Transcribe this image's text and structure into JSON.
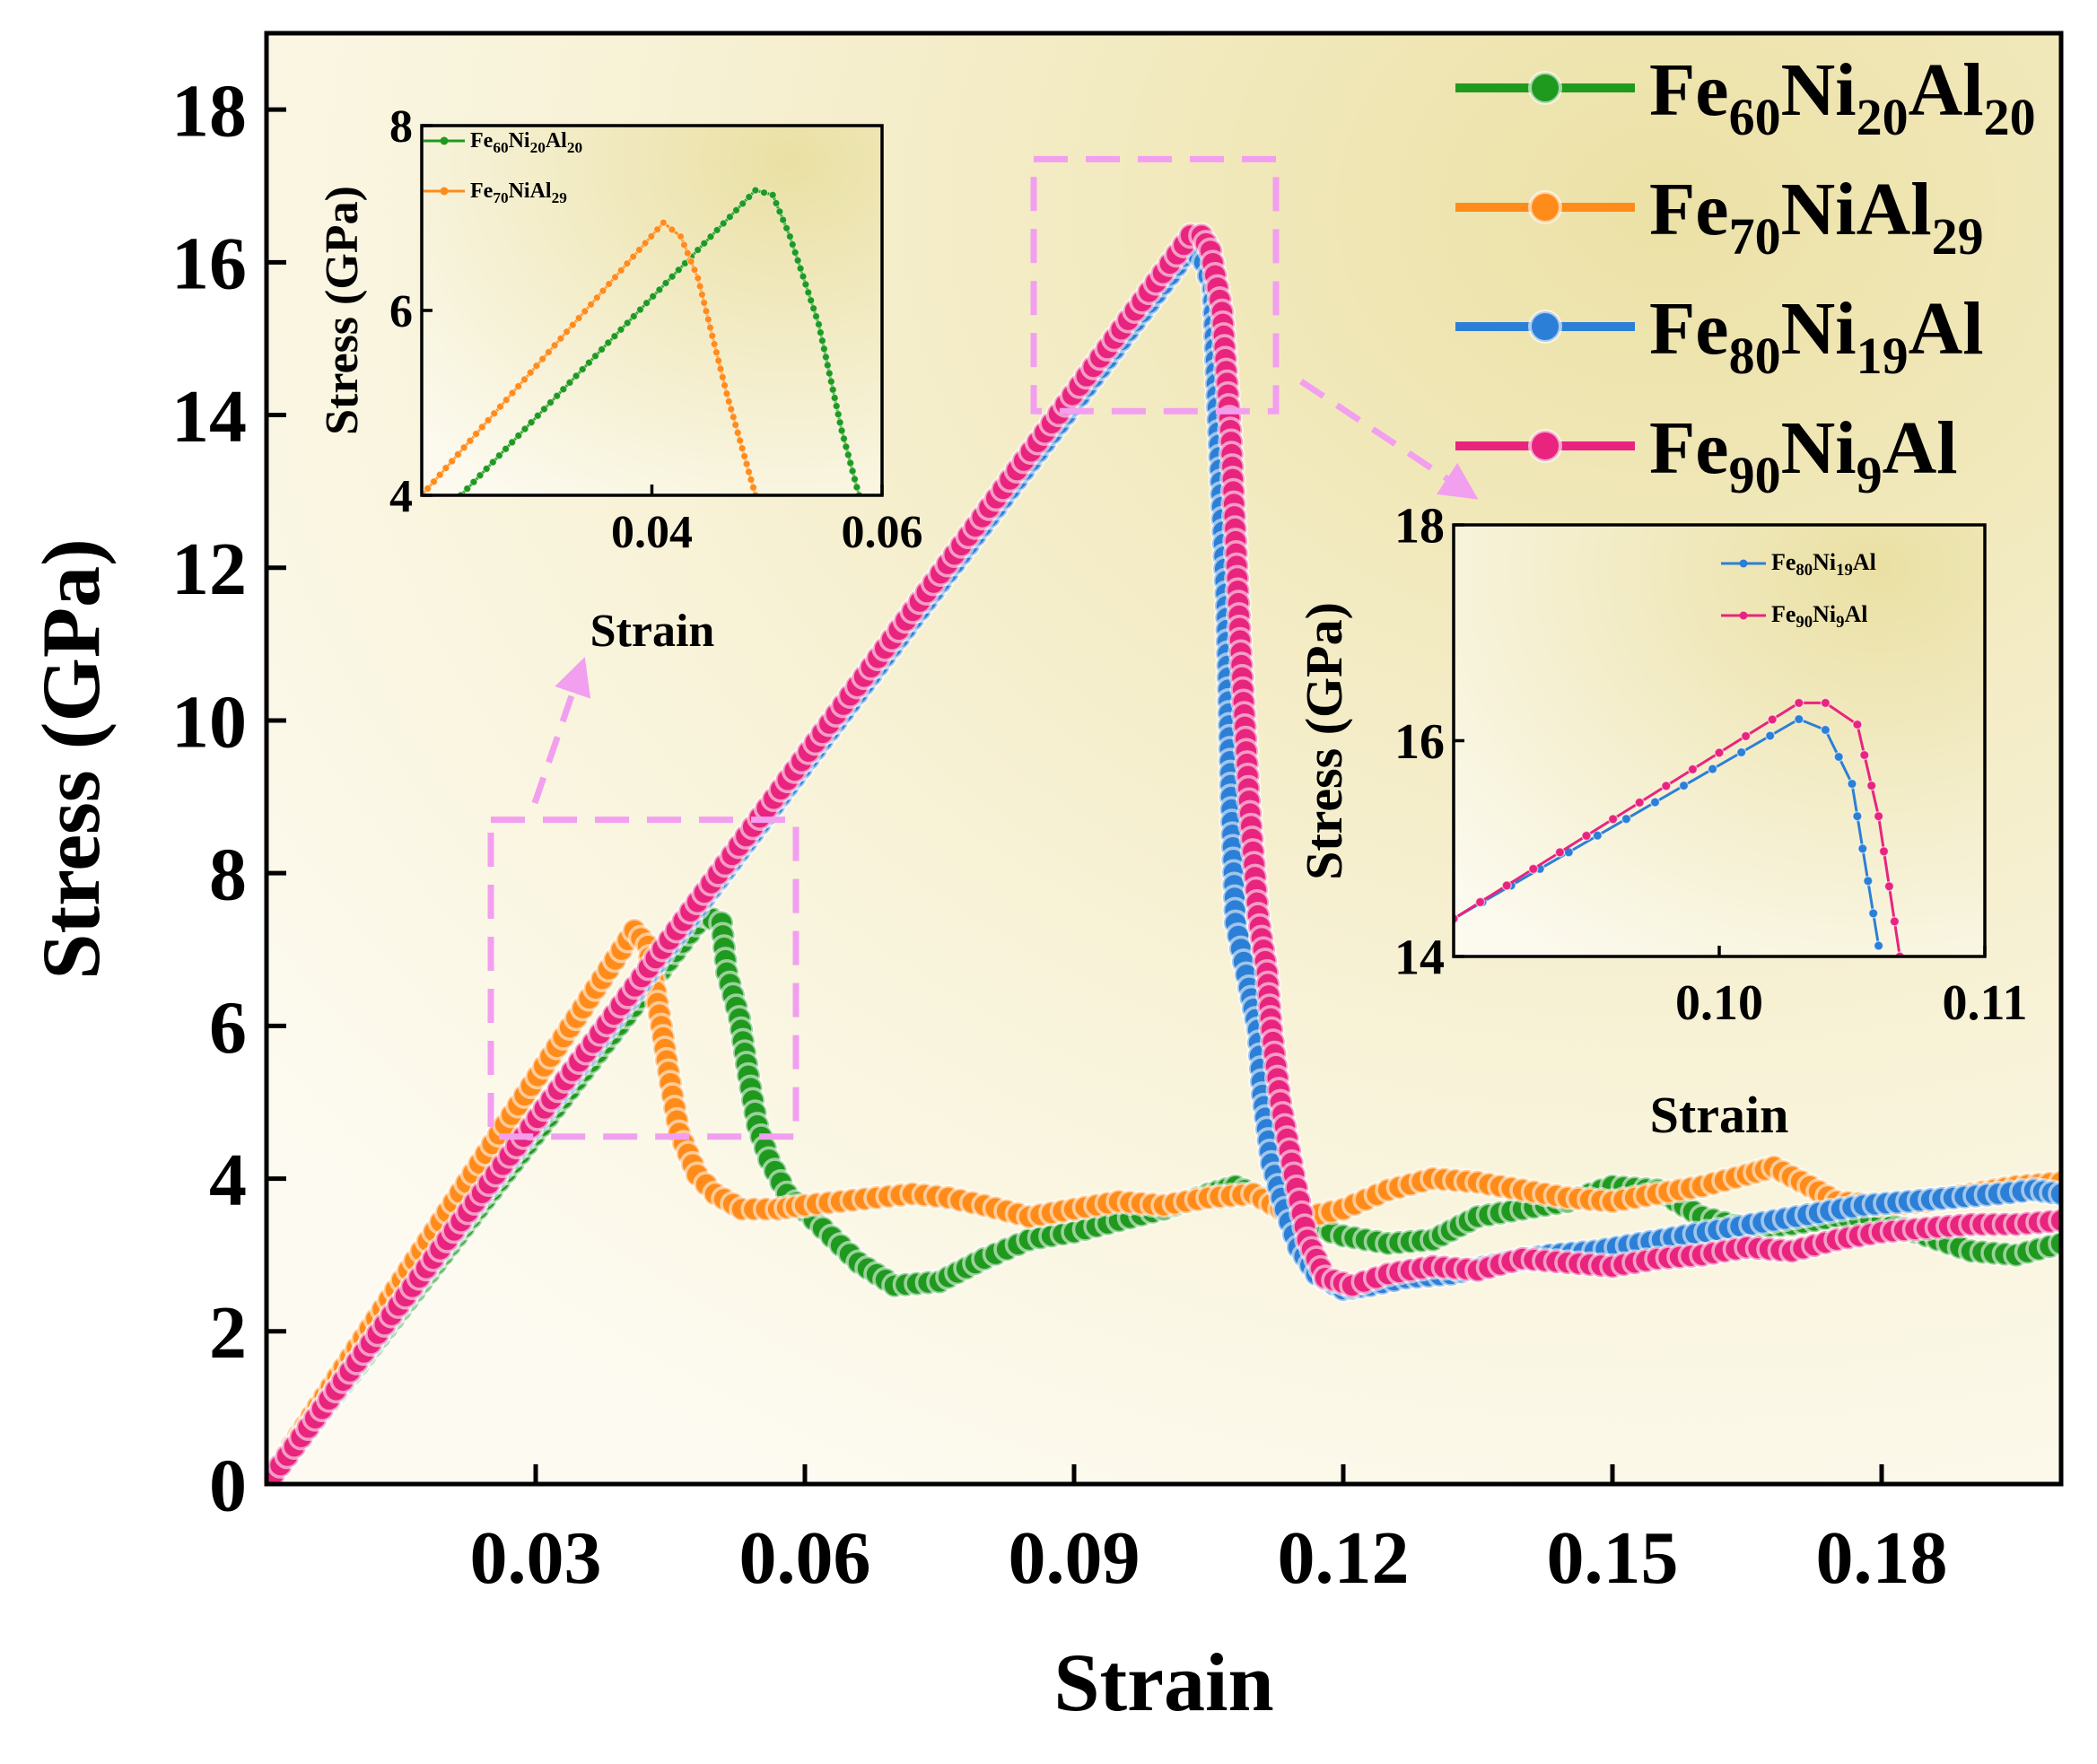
{
  "chart_data": [
    {
      "id": "main",
      "type": "line",
      "xlabel": "Strain",
      "ylabel": "Stress (GPa)",
      "xlim": [
        0,
        0.2
      ],
      "ylim": [
        0,
        19
      ],
      "xticks": [
        0.03,
        0.06,
        0.09,
        0.12,
        0.15,
        0.18
      ],
      "xtick_labels": [
        "0.03",
        "0.06",
        "0.09",
        "0.12",
        "0.15",
        "0.18"
      ],
      "yticks": [
        0,
        2,
        4,
        6,
        8,
        10,
        12,
        14,
        16,
        18
      ],
      "ytick_labels": [
        "0",
        "2",
        "4",
        "6",
        "8",
        "10",
        "12",
        "14",
        "16",
        "18"
      ],
      "legend_position": "top-right",
      "series": [
        {
          "name": "Fe60Ni20Al20",
          "label": {
            "base": [
              "Fe",
              "Ni",
              "Al"
            ],
            "sub": [
              "60",
              "20",
              "20"
            ]
          },
          "color": "#1f9a1f",
          "points": [
            [
              0,
              0
            ],
            [
              0.0487,
              7.45
            ],
            [
              0.0507,
              7.35
            ],
            [
              0.0513,
              6.7
            ],
            [
              0.0527,
              6.1
            ],
            [
              0.0537,
              5.35
            ],
            [
              0.0547,
              4.7
            ],
            [
              0.056,
              4.25
            ],
            [
              0.058,
              3.8
            ],
            [
              0.062,
              3.35
            ],
            [
              0.066,
              2.9
            ],
            [
              0.07,
              2.6
            ],
            [
              0.075,
              2.65
            ],
            [
              0.08,
              2.95
            ],
            [
              0.085,
              3.2
            ],
            [
              0.09,
              3.3
            ],
            [
              0.095,
              3.45
            ],
            [
              0.1,
              3.6
            ],
            [
              0.105,
              3.8
            ],
            [
              0.108,
              3.9
            ],
            [
              0.112,
              3.7
            ],
            [
              0.116,
              3.4
            ],
            [
              0.12,
              3.25
            ],
            [
              0.125,
              3.15
            ],
            [
              0.13,
              3.2
            ],
            [
              0.135,
              3.5
            ],
            [
              0.14,
              3.6
            ],
            [
              0.145,
              3.7
            ],
            [
              0.15,
              3.9
            ],
            [
              0.155,
              3.85
            ],
            [
              0.16,
              3.5
            ],
            [
              0.165,
              3.35
            ],
            [
              0.17,
              3.4
            ],
            [
              0.175,
              3.5
            ],
            [
              0.18,
              3.45
            ],
            [
              0.185,
              3.25
            ],
            [
              0.19,
              3.05
            ],
            [
              0.195,
              3.0
            ],
            [
              0.2,
              3.15
            ]
          ]
        },
        {
          "name": "Fe70NiAl29",
          "label": {
            "base": [
              "Fe",
              "NiAl"
            ],
            "sub": [
              "70",
              "29"
            ]
          },
          "color": "#ff8c1a",
          "points": [
            [
              0,
              0
            ],
            [
              0.041,
              7.25
            ],
            [
              0.0425,
              7.05
            ],
            [
              0.044,
              6.0
            ],
            [
              0.045,
              5.25
            ],
            [
              0.046,
              4.6
            ],
            [
              0.048,
              4.05
            ],
            [
              0.05,
              3.8
            ],
            [
              0.053,
              3.6
            ],
            [
              0.057,
              3.6
            ],
            [
              0.06,
              3.65
            ],
            [
              0.064,
              3.7
            ],
            [
              0.068,
              3.75
            ],
            [
              0.072,
              3.8
            ],
            [
              0.076,
              3.75
            ],
            [
              0.08,
              3.65
            ],
            [
              0.085,
              3.5
            ],
            [
              0.09,
              3.6
            ],
            [
              0.095,
              3.7
            ],
            [
              0.1,
              3.65
            ],
            [
              0.105,
              3.75
            ],
            [
              0.11,
              3.8
            ],
            [
              0.113,
              3.6
            ],
            [
              0.116,
              3.5
            ],
            [
              0.12,
              3.6
            ],
            [
              0.125,
              3.85
            ],
            [
              0.13,
              4.0
            ],
            [
              0.135,
              3.95
            ],
            [
              0.14,
              3.85
            ],
            [
              0.145,
              3.75
            ],
            [
              0.15,
              3.7
            ],
            [
              0.155,
              3.8
            ],
            [
              0.16,
              3.9
            ],
            [
              0.165,
              4.05
            ],
            [
              0.168,
              4.15
            ],
            [
              0.172,
              3.9
            ],
            [
              0.175,
              3.7
            ],
            [
              0.18,
              3.65
            ],
            [
              0.185,
              3.7
            ],
            [
              0.19,
              3.8
            ],
            [
              0.195,
              3.9
            ],
            [
              0.2,
              3.95
            ]
          ]
        },
        {
          "name": "Fe80Ni19Al",
          "label": {
            "base": [
              "Fe",
              "Ni",
              "Al"
            ],
            "sub": [
              "80",
              "19",
              ""
            ]
          },
          "color": "#2c7fd6",
          "points": [
            [
              0,
              0
            ],
            [
              0.103,
              16.2
            ],
            [
              0.1045,
              16.0
            ],
            [
              0.1055,
              15.65
            ],
            [
              0.106,
              14.1
            ],
            [
              0.107,
              11.5
            ],
            [
              0.1075,
              9.0
            ],
            [
              0.108,
              7.35
            ],
            [
              0.1095,
              6.5
            ],
            [
              0.1105,
              5.95
            ],
            [
              0.111,
              5.1
            ],
            [
              0.112,
              4.2
            ],
            [
              0.1135,
              3.6
            ],
            [
              0.115,
              3.1
            ],
            [
              0.117,
              2.75
            ],
            [
              0.12,
              2.55
            ],
            [
              0.123,
              2.6
            ],
            [
              0.127,
              2.7
            ],
            [
              0.132,
              2.75
            ],
            [
              0.138,
              2.9
            ],
            [
              0.143,
              3.0
            ],
            [
              0.148,
              3.05
            ],
            [
              0.153,
              3.15
            ],
            [
              0.158,
              3.25
            ],
            [
              0.163,
              3.35
            ],
            [
              0.168,
              3.45
            ],
            [
              0.173,
              3.55
            ],
            [
              0.178,
              3.65
            ],
            [
              0.183,
              3.7
            ],
            [
              0.188,
              3.75
            ],
            [
              0.193,
              3.8
            ],
            [
              0.197,
              3.85
            ],
            [
              0.2,
              3.8
            ]
          ]
        },
        {
          "name": "Fe90Ni9Al",
          "label": {
            "base": [
              "Fe",
              "Ni",
              "Al"
            ],
            "sub": [
              "90",
              "9",
              ""
            ]
          },
          "color": "#e8247f",
          "points": [
            [
              0,
              0
            ],
            [
              0.103,
              16.35
            ],
            [
              0.1042,
              16.35
            ],
            [
              0.1052,
              16.15
            ],
            [
              0.1065,
              15.35
            ],
            [
              0.1075,
              13.65
            ],
            [
              0.1085,
              11.05
            ],
            [
              0.1095,
              8.95
            ],
            [
              0.1105,
              7.45
            ],
            [
              0.1115,
              6.7
            ],
            [
              0.112,
              5.95
            ],
            [
              0.113,
              5.0
            ],
            [
              0.1145,
              4.05
            ],
            [
              0.116,
              3.2
            ],
            [
              0.118,
              2.7
            ],
            [
              0.121,
              2.6
            ],
            [
              0.125,
              2.75
            ],
            [
              0.13,
              2.85
            ],
            [
              0.135,
              2.8
            ],
            [
              0.14,
              2.95
            ],
            [
              0.145,
              2.9
            ],
            [
              0.15,
              2.85
            ],
            [
              0.155,
              2.95
            ],
            [
              0.16,
              3.0
            ],
            [
              0.165,
              3.1
            ],
            [
              0.17,
              3.05
            ],
            [
              0.175,
              3.2
            ],
            [
              0.18,
              3.3
            ],
            [
              0.185,
              3.35
            ],
            [
              0.19,
              3.4
            ],
            [
              0.195,
              3.4
            ],
            [
              0.2,
              3.45
            ]
          ]
        }
      ],
      "zoom_boxes": [
        {
          "x": [
            0.025,
            0.059
          ],
          "y": [
            4.55,
            8.7
          ]
        },
        {
          "x": [
            0.0855,
            0.1125
          ],
          "y": [
            14.05,
            17.35
          ]
        }
      ]
    },
    {
      "id": "inset-left",
      "type": "line",
      "xlabel": "Strain",
      "ylabel": "Stress (GPa)",
      "xlim": [
        0.02,
        0.06
      ],
      "ylim": [
        4,
        8
      ],
      "xticks": [
        0.04,
        0.06
      ],
      "xtick_labels": [
        "0.04",
        "0.06"
      ],
      "yticks": [
        4,
        6,
        8
      ],
      "ytick_labels": [
        "4",
        "6",
        "8"
      ],
      "legend_position": "top-left",
      "series": [
        {
          "name": "Fe60Ni20Al20",
          "label": {
            "base": [
              "Fe",
              "Ni",
              "Al"
            ],
            "sub": [
              "60",
              "20",
              "20"
            ]
          },
          "color": "#1f9a1f",
          "points": [
            [
              0.0234,
              4.0
            ],
            [
              0.049,
              7.3
            ],
            [
              0.0505,
              7.25
            ],
            [
              0.052,
              6.8
            ],
            [
              0.0545,
              5.85
            ],
            [
              0.0565,
              4.7
            ],
            [
              0.058,
              4.0
            ]
          ]
        },
        {
          "name": "Fe70NiAl29",
          "label": {
            "base": [
              "Fe",
              "NiAl"
            ],
            "sub": [
              "70",
              "29"
            ]
          },
          "color": "#ff8c1a",
          "points": [
            [
              0.02,
              4.0
            ],
            [
              0.041,
              6.95
            ],
            [
              0.0425,
              6.8
            ],
            [
              0.044,
              6.35
            ],
            [
              0.0465,
              5.1
            ],
            [
              0.049,
              4.0
            ]
          ]
        }
      ]
    },
    {
      "id": "inset-right",
      "type": "line",
      "xlabel": "Strain",
      "ylabel": "Stress (GPa)",
      "xlim": [
        0.09,
        0.11
      ],
      "ylim": [
        14,
        18
      ],
      "xticks": [
        0.1,
        0.11
      ],
      "xtick_labels": [
        "0.10",
        "0.11"
      ],
      "yticks": [
        14,
        16,
        18
      ],
      "ytick_labels": [
        "14",
        "16",
        "18"
      ],
      "legend_position": "top-right",
      "series": [
        {
          "name": "Fe80Ni19Al",
          "label": {
            "base": [
              "Fe",
              "Ni",
              "Al"
            ],
            "sub": [
              "80",
              "19",
              ""
            ]
          },
          "color": "#2c7fd6",
          "points": [
            [
              0.09,
              14.35
            ],
            [
              0.103,
              16.2
            ],
            [
              0.104,
              16.1
            ],
            [
              0.105,
              15.6
            ],
            [
              0.106,
              14.1
            ]
          ]
        },
        {
          "name": "Fe90Ni9Al",
          "label": {
            "base": [
              "Fe",
              "Ni",
              "Al"
            ],
            "sub": [
              "90",
              "9",
              ""
            ]
          },
          "color": "#e8247f",
          "points": [
            [
              0.09,
              14.35
            ],
            [
              0.103,
              16.35
            ],
            [
              0.104,
              16.35
            ],
            [
              0.1052,
              16.15
            ],
            [
              0.106,
              15.3
            ],
            [
              0.1068,
              14.0
            ]
          ]
        }
      ]
    }
  ]
}
